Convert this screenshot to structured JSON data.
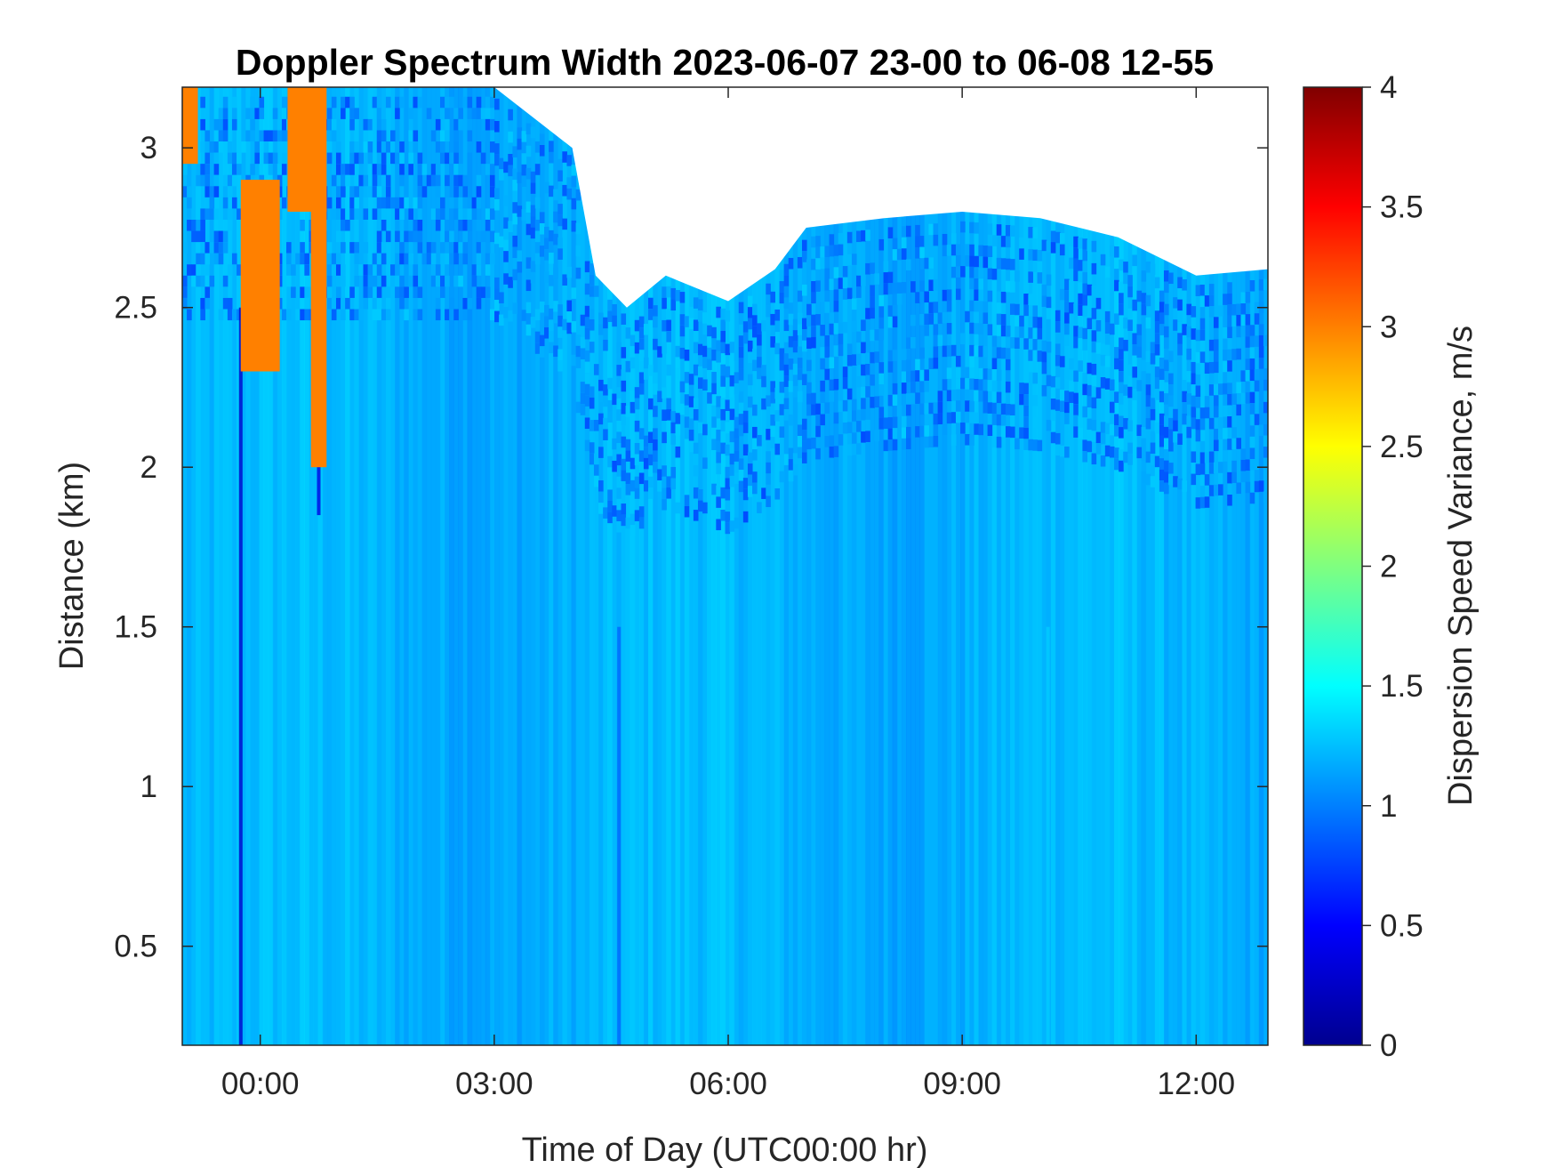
{
  "chart_data": {
    "type": "heatmap",
    "title": "Doppler Spectrum Width 2023-06-07 23-00 to 06-08 12-55",
    "xlabel": "Time of Day (UTC00:00 hr)",
    "ylabel": "Distance (km)",
    "colorbar_label": "Dispersion Speed Variance, m/s",
    "colormap": "jet",
    "x_unit": "hours relative to 2023-06-08 00:00 UTC",
    "xlim": [
      -1.0,
      12.92
    ],
    "ylim": [
      0.19,
      3.19
    ],
    "clim": [
      0,
      4
    ],
    "x_ticks": [
      0,
      3,
      6,
      9,
      12
    ],
    "x_tick_labels": [
      "00:00",
      "03:00",
      "06:00",
      "09:00",
      "12:00"
    ],
    "y_ticks": [
      0.5,
      1,
      1.5,
      2,
      2.5,
      3
    ],
    "y_tick_labels": [
      "0.5",
      "1",
      "1.5",
      "2",
      "2.5",
      "3"
    ],
    "c_ticks": [
      0,
      0.5,
      1,
      1.5,
      2,
      2.5,
      3,
      3.5,
      4
    ],
    "c_tick_labels": [
      "0",
      "0.5",
      "1",
      "1.5",
      "2",
      "2.5",
      "3",
      "3.5",
      "4"
    ],
    "grid": false,
    "background_value_ms": 1.2,
    "no_data_top_km": {
      "x": [
        -1.0,
        -0.5,
        0.0,
        1.0,
        2.0,
        3.0,
        4.0,
        4.3,
        4.7,
        5.2,
        6.0,
        6.6,
        7.0,
        8.0,
        9.0,
        10.0,
        11.0,
        12.0,
        12.92
      ],
      "value": [
        3.19,
        3.19,
        3.19,
        3.19,
        3.19,
        3.19,
        3.0,
        2.6,
        2.5,
        2.6,
        2.52,
        2.62,
        2.75,
        2.78,
        2.8,
        2.78,
        2.72,
        2.6,
        2.62
      ]
    },
    "highlight_regions": [
      {
        "x_range": [
          -1.0,
          -0.8
        ],
        "y_range": [
          2.95,
          3.19
        ],
        "value": 3.0
      },
      {
        "x_range": [
          -0.25,
          0.25
        ],
        "y_range": [
          2.3,
          2.9
        ],
        "value": 3.0
      },
      {
        "x_range": [
          0.35,
          0.85
        ],
        "y_range": [
          2.8,
          3.19
        ],
        "value": 3.0
      },
      {
        "x_range": [
          0.65,
          0.85
        ],
        "y_range": [
          2.0,
          2.9
        ],
        "value": 3.0
      }
    ],
    "vertical_streaks": [
      {
        "x": -0.25,
        "y_range": [
          0.19,
          2.5
        ],
        "value": 0.3
      },
      {
        "x": 0.75,
        "y_range": [
          1.85,
          2.4
        ],
        "value": 0.4
      },
      {
        "x": 4.6,
        "y_range": [
          0.19,
          1.5
        ],
        "value": 0.9
      },
      {
        "x": 10.1,
        "y_range": [
          0.19,
          1.5
        ],
        "value": 1.3
      }
    ]
  }
}
